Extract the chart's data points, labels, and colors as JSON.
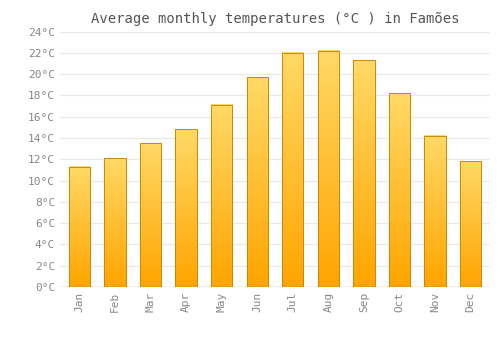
{
  "title": "Average monthly temperatures (°C ) in Famões",
  "months": [
    "Jan",
    "Feb",
    "Mar",
    "Apr",
    "May",
    "Jun",
    "Jul",
    "Aug",
    "Sep",
    "Oct",
    "Nov",
    "Dec"
  ],
  "temperatures": [
    11.3,
    12.1,
    13.5,
    14.8,
    17.1,
    19.7,
    22.0,
    22.2,
    21.3,
    18.2,
    14.2,
    11.8
  ],
  "bar_color_bottom": "#FFA500",
  "bar_color_top": "#FFD966",
  "bar_edge_color": "#CC8800",
  "ylim": [
    0,
    24
  ],
  "yticks": [
    0,
    2,
    4,
    6,
    8,
    10,
    12,
    14,
    16,
    18,
    20,
    22,
    24
  ],
  "ytick_labels": [
    "0°C",
    "2°C",
    "4°C",
    "6°C",
    "8°C",
    "10°C",
    "12°C",
    "14°C",
    "16°C",
    "18°C",
    "20°C",
    "22°C",
    "24°C"
  ],
  "background_color": "#FFFFFF",
  "grid_color": "#E8E8E8",
  "title_fontsize": 10,
  "tick_fontsize": 8,
  "bar_width": 0.6
}
